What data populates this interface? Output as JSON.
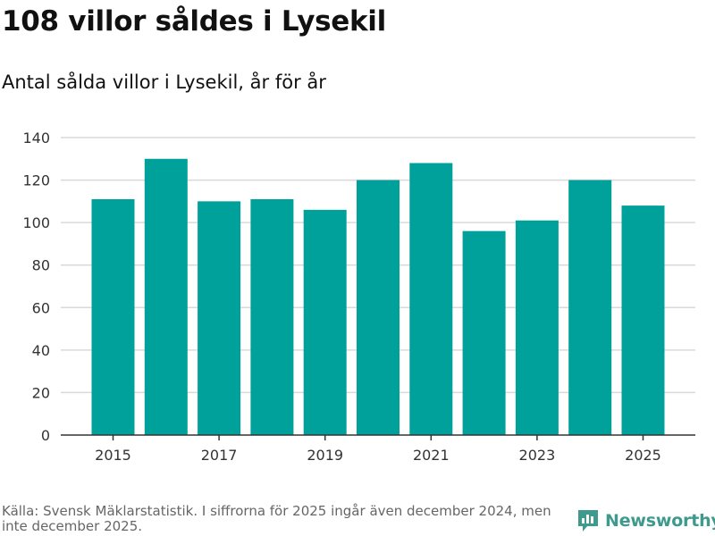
{
  "colors": {
    "bar": "#00a19a",
    "grid": "#d9d9d9",
    "axis": "#333333",
    "brand": "#3d9a8c"
  },
  "chart_data": {
    "type": "bar",
    "title": "108 villor såldes i Lysekil",
    "subtitle": "Antal sålda villor i Lysekil, år för år",
    "categories": [
      "2015",
      "2016",
      "2017",
      "2018",
      "2019",
      "2020",
      "2021",
      "2022",
      "2023",
      "2024",
      "2025"
    ],
    "values": [
      111,
      130,
      110,
      111,
      106,
      120,
      128,
      96,
      101,
      120,
      108
    ],
    "xtick_labels": [
      "2015",
      "2017",
      "2019",
      "2021",
      "2023",
      "2025"
    ],
    "yticks": [
      0,
      20,
      40,
      60,
      80,
      100,
      120,
      140
    ],
    "ylim": [
      0,
      140
    ],
    "xlabel": "",
    "ylabel": "",
    "grid": true
  },
  "footer": {
    "source": "Källa: Svensk Mäklarstatistik. I siffrorna för 2025 ingår även december 2024, men inte december 2025.",
    "brand": "Newsworthy",
    "brand_icon": "bar-chart-logo-icon"
  }
}
